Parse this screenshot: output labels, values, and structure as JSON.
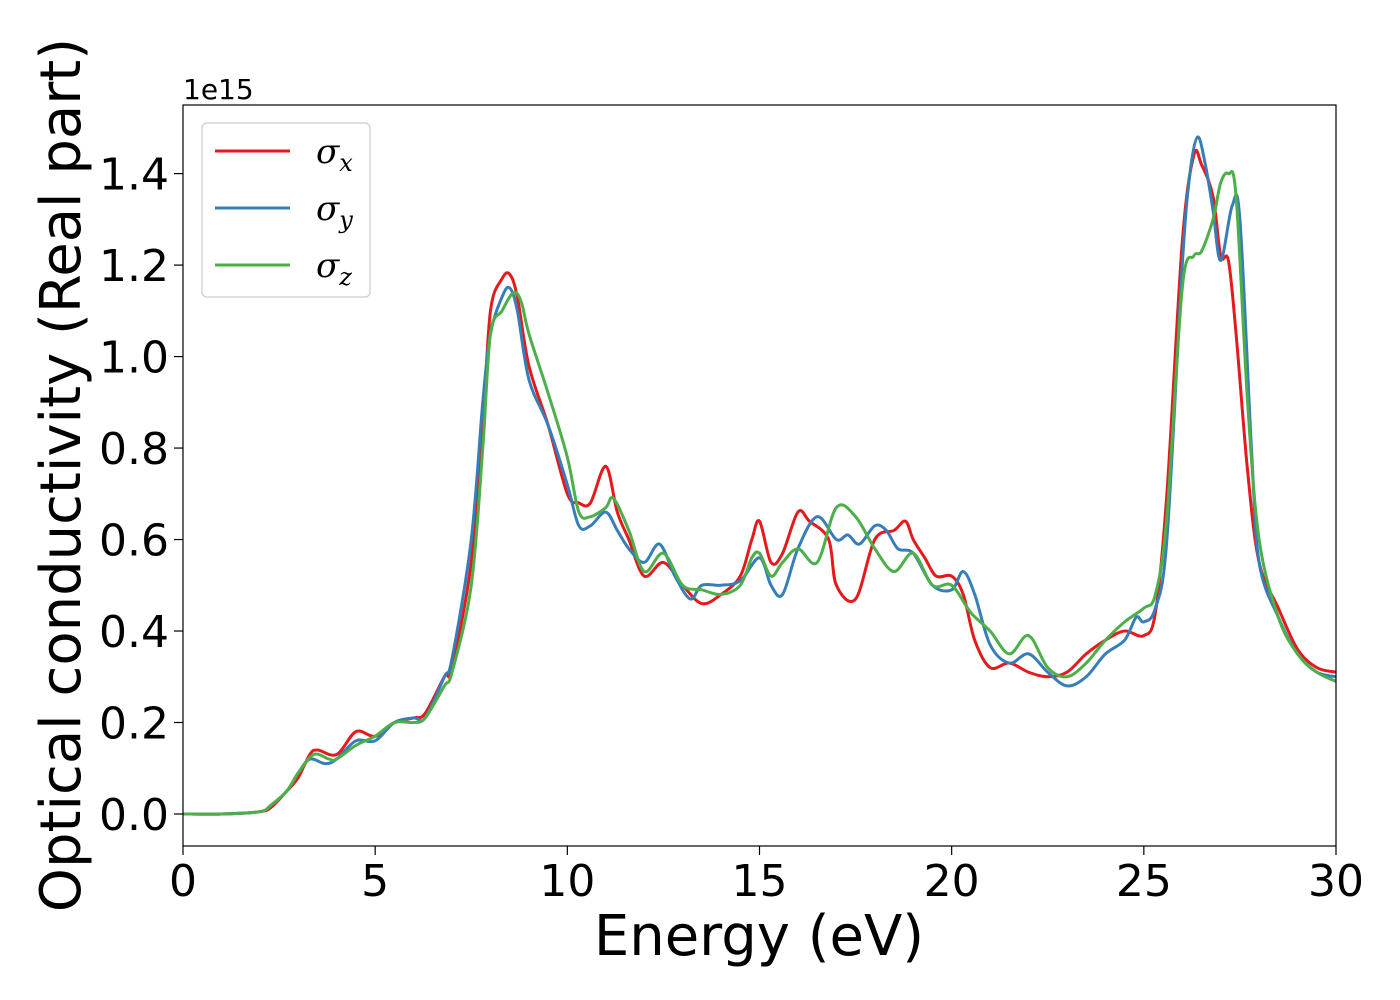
{
  "chart_data": {
    "type": "line",
    "xlabel": "Energy (eV)",
    "ylabel": "Optical conductivity (Real part)",
    "y_offset_label": "1e15",
    "xlim": [
      0,
      30
    ],
    "ylim": [
      -0.07,
      1.55
    ],
    "xticks": [
      0,
      5,
      10,
      15,
      20,
      25,
      30
    ],
    "xtick_labels": [
      "0",
      "5",
      "10",
      "15",
      "20",
      "25",
      "30"
    ],
    "yticks": [
      0.0,
      0.2,
      0.4,
      0.6,
      0.8,
      1.0,
      1.2,
      1.4
    ],
    "ytick_labels": [
      "0.0",
      "0.2",
      "0.4",
      "0.6",
      "0.8",
      "1.0",
      "1.2",
      "1.4"
    ],
    "grid": false,
    "legend_position": "top-left",
    "series": [
      {
        "name": "σ",
        "subscript": "x",
        "color": "#e41a1c",
        "x": [
          0,
          1,
          2,
          2.3,
          2.7,
          3,
          3.3,
          3.5,
          4,
          4.5,
          5,
          5.5,
          6,
          6.3,
          6.8,
          7,
          7.5,
          7.8,
          8,
          8.3,
          8.5,
          8.7,
          9,
          9.5,
          10,
          10.3,
          10.6,
          11,
          11.3,
          11.6,
          12,
          12.5,
          13,
          13.5,
          14,
          14.5,
          14.8,
          15,
          15.3,
          15.6,
          16,
          16.3,
          16.8,
          17,
          17.5,
          18,
          18.5,
          18.8,
          19,
          19.3,
          19.6,
          20,
          20.3,
          20.6,
          21,
          21.5,
          22,
          22.5,
          23,
          23.5,
          24,
          24.5,
          25,
          25.3,
          25.6,
          26,
          26.3,
          26.5,
          26.8,
          27,
          27.2,
          27.4,
          27.7,
          28,
          28.5,
          29,
          29.5,
          30
        ],
        "y": [
          0,
          0,
          0.005,
          0.015,
          0.05,
          0.08,
          0.13,
          0.14,
          0.13,
          0.18,
          0.17,
          0.2,
          0.21,
          0.22,
          0.3,
          0.32,
          0.55,
          0.85,
          1.1,
          1.17,
          1.18,
          1.13,
          0.98,
          0.85,
          0.7,
          0.68,
          0.68,
          0.76,
          0.66,
          0.6,
          0.52,
          0.55,
          0.5,
          0.46,
          0.48,
          0.52,
          0.6,
          0.64,
          0.55,
          0.57,
          0.66,
          0.64,
          0.6,
          0.5,
          0.47,
          0.6,
          0.62,
          0.64,
          0.6,
          0.56,
          0.52,
          0.52,
          0.48,
          0.38,
          0.32,
          0.33,
          0.31,
          0.3,
          0.31,
          0.35,
          0.38,
          0.4,
          0.39,
          0.44,
          0.7,
          1.25,
          1.44,
          1.42,
          1.35,
          1.22,
          1.21,
          1.05,
          0.75,
          0.55,
          0.45,
          0.36,
          0.32,
          0.31
        ]
      },
      {
        "name": "σ",
        "subscript": "y",
        "color": "#377eb8",
        "x": [
          0,
          1,
          2,
          2.3,
          2.7,
          3,
          3.3,
          3.7,
          4,
          4.5,
          5,
          5.5,
          6,
          6.3,
          6.8,
          7,
          7.5,
          7.8,
          8,
          8.3,
          8.5,
          8.7,
          9,
          9.5,
          10,
          10.3,
          10.6,
          11,
          11.3,
          11.6,
          12,
          12.4,
          12.8,
          13.2,
          13.5,
          14,
          14.5,
          15,
          15.3,
          15.6,
          16,
          16.5,
          17,
          17.3,
          17.6,
          18,
          18.3,
          18.6,
          19,
          19.5,
          20,
          20.3,
          20.6,
          21,
          21.5,
          22,
          22.5,
          23,
          23.5,
          24,
          24.5,
          24.8,
          25,
          25.3,
          25.6,
          26,
          26.2,
          26.4,
          26.6,
          26.8,
          27,
          27.3,
          27.5,
          27.8,
          28,
          28.5,
          29,
          29.5,
          30
        ],
        "y": [
          0,
          0,
          0.005,
          0.02,
          0.05,
          0.09,
          0.12,
          0.11,
          0.12,
          0.16,
          0.16,
          0.2,
          0.21,
          0.21,
          0.3,
          0.34,
          0.6,
          0.9,
          1.05,
          1.13,
          1.15,
          1.1,
          0.95,
          0.85,
          0.72,
          0.63,
          0.63,
          0.66,
          0.62,
          0.58,
          0.55,
          0.59,
          0.52,
          0.47,
          0.5,
          0.5,
          0.51,
          0.56,
          0.5,
          0.48,
          0.58,
          0.65,
          0.6,
          0.61,
          0.59,
          0.63,
          0.62,
          0.58,
          0.57,
          0.5,
          0.49,
          0.53,
          0.48,
          0.37,
          0.33,
          0.35,
          0.31,
          0.28,
          0.3,
          0.35,
          0.38,
          0.43,
          0.42,
          0.45,
          0.6,
          1.2,
          1.4,
          1.48,
          1.42,
          1.32,
          1.21,
          1.33,
          1.3,
          0.8,
          0.55,
          0.43,
          0.35,
          0.31,
          0.3
        ]
      },
      {
        "name": "σ",
        "subscript": "z",
        "color": "#4daf4a",
        "x": [
          0,
          1,
          2,
          2.3,
          2.7,
          3,
          3.4,
          3.8,
          4,
          4.5,
          5,
          5.5,
          6,
          6.3,
          6.8,
          7,
          7.5,
          7.8,
          8,
          8.3,
          8.6,
          8.8,
          9,
          9.5,
          10,
          10.3,
          10.6,
          11,
          11.2,
          11.6,
          12,
          12.5,
          13,
          13.5,
          14,
          14.5,
          14.8,
          15,
          15.3,
          15.6,
          16,
          16.5,
          17,
          17.5,
          18,
          18.5,
          19,
          19.5,
          20,
          20.5,
          21,
          21.5,
          22,
          22.5,
          23,
          23.5,
          24,
          24.5,
          25,
          25.3,
          25.6,
          26,
          26.3,
          26.5,
          26.8,
          27,
          27.2,
          27.4,
          27.7,
          28,
          28.5,
          29,
          29.5,
          30
        ],
        "y": [
          0,
          0,
          0.005,
          0.02,
          0.05,
          0.09,
          0.13,
          0.12,
          0.12,
          0.15,
          0.17,
          0.2,
          0.2,
          0.21,
          0.28,
          0.31,
          0.5,
          0.8,
          1.05,
          1.1,
          1.14,
          1.12,
          1.05,
          0.92,
          0.78,
          0.66,
          0.65,
          0.67,
          0.69,
          0.62,
          0.53,
          0.57,
          0.5,
          0.49,
          0.48,
          0.5,
          0.56,
          0.57,
          0.52,
          0.55,
          0.58,
          0.55,
          0.67,
          0.65,
          0.58,
          0.53,
          0.57,
          0.5,
          0.5,
          0.44,
          0.4,
          0.35,
          0.39,
          0.32,
          0.3,
          0.33,
          0.38,
          0.42,
          0.45,
          0.48,
          0.65,
          1.15,
          1.22,
          1.23,
          1.3,
          1.38,
          1.4,
          1.35,
          0.9,
          0.6,
          0.43,
          0.35,
          0.31,
          0.29
        ]
      }
    ]
  }
}
